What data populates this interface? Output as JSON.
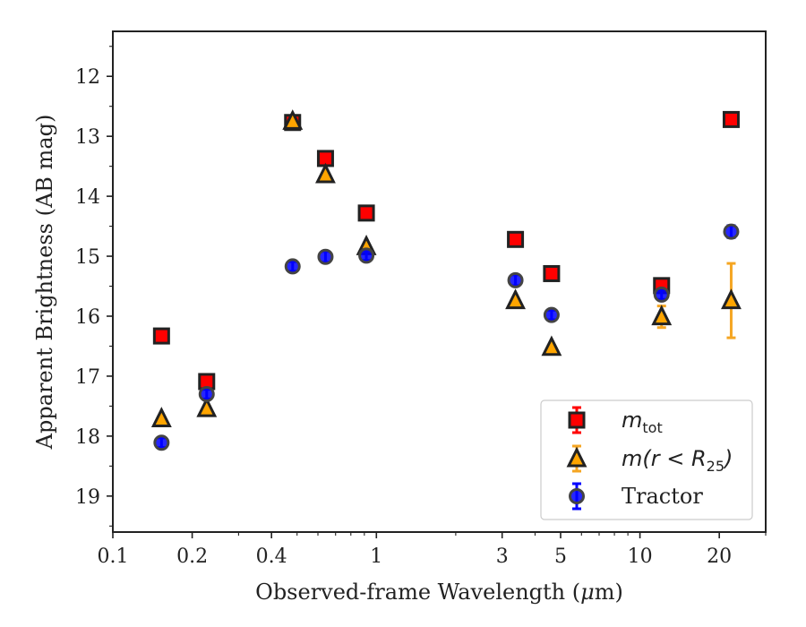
{
  "chart_data": {
    "type": "scatter",
    "title": "",
    "xlabel": "Observed-frame Wavelength (",
    "xlabel_mu": "μ",
    "xlabel_tail": "m)",
    "ylabel": "Apparent Brightness (AB mag)",
    "xscale": "log",
    "xlim": [
      0.1,
      30
    ],
    "ylim": [
      19.6,
      11.25
    ],
    "y_inverted": true,
    "x_ticks": [
      0.1,
      0.2,
      0.4,
      1,
      3,
      5,
      10,
      20
    ],
    "x_tick_labels": [
      "0.1",
      "0.2",
      "0.4",
      "1",
      "3",
      "5",
      "10",
      "20"
    ],
    "y_ticks": [
      12,
      13,
      14,
      15,
      16,
      17,
      18,
      19
    ],
    "y_tick_labels": [
      "12",
      "13",
      "14",
      "15",
      "16",
      "17",
      "18",
      "19"
    ],
    "grid": false,
    "legend_position": "lower-right",
    "series": [
      {
        "name_main": "m",
        "name_sub": "tot",
        "marker": "square",
        "color": "#ff0000",
        "edge_color": "#222222",
        "errorbar_color": "#ff0000",
        "x": [
          0.153,
          0.227,
          0.481,
          0.641,
          0.916,
          3.37,
          4.62,
          12.08,
          22.19
        ],
        "y": [
          16.33,
          17.09,
          12.77,
          13.37,
          14.28,
          14.72,
          15.29,
          15.49,
          12.72
        ],
        "yerr": [
          0.03,
          0.03,
          0.02,
          0.02,
          0.02,
          0.02,
          0.03,
          0.05,
          0.05
        ]
      },
      {
        "name_main": "m(r < R",
        "name_sub": "25",
        "name_tail": ")",
        "marker": "triangle",
        "color": "#ffa500",
        "edge_color": "#222222",
        "errorbar_color": "#f5a623",
        "x": [
          0.153,
          0.227,
          0.481,
          0.641,
          0.916,
          3.37,
          4.62,
          12.08,
          22.19
        ],
        "y": [
          17.71,
          17.54,
          12.75,
          13.64,
          14.84,
          15.74,
          16.52,
          16.01,
          15.74
        ],
        "yerr": [
          0.03,
          0.03,
          0.02,
          0.02,
          0.02,
          0.03,
          0.03,
          0.18,
          0.62
        ]
      },
      {
        "name": "Tractor",
        "marker": "circle",
        "color": "#0000ff",
        "edge_color": "#444444",
        "errorbar_color": "#0000ff",
        "x": [
          0.153,
          0.227,
          0.481,
          0.641,
          0.916,
          3.37,
          4.62,
          12.08,
          22.19
        ],
        "y": [
          18.11,
          17.3,
          15.17,
          15.01,
          14.99,
          15.4,
          15.98,
          15.64,
          14.59
        ],
        "yerr": [
          0.08,
          0.08,
          0.08,
          0.09,
          0.08,
          0.09,
          0.08,
          0.08,
          0.1
        ]
      }
    ]
  }
}
